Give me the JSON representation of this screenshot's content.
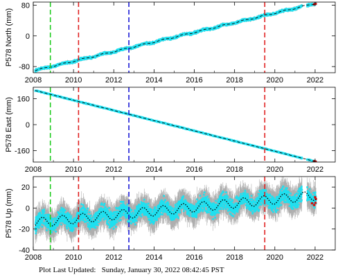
{
  "footer": {
    "label": "Plot Last Updated:",
    "timestamp": "Sunday, January 30, 2022 08:42:45 PST"
  },
  "chart_data": [
    {
      "type": "scatter",
      "ylabel": "P578 North (mm)",
      "xlim": [
        2008,
        2023
      ],
      "ylim": [
        -96,
        88
      ],
      "x_ticks": [
        "2008",
        "2010",
        "2012",
        "2014",
        "2016",
        "2018",
        "2020",
        "2022"
      ],
      "y_ticks": [
        -80,
        0,
        80
      ],
      "trend": {
        "x": [
          2008.1,
          2022.05
        ],
        "y": [
          -90,
          85
        ]
      },
      "seasonal_amplitude": 1.5,
      "noise": 2,
      "error_bar": 3
    },
    {
      "type": "scatter",
      "ylabel": "P578 East (mm)",
      "xlim": [
        2008,
        2023
      ],
      "ylim": [
        -230,
        230
      ],
      "x_ticks": [
        "2008",
        "2010",
        "2012",
        "2014",
        "2016",
        "2018",
        "2020",
        "2022"
      ],
      "y_ticks": [
        -160,
        0,
        160
      ],
      "trend": {
        "x": [
          2008.1,
          2022.05
        ],
        "y": [
          210,
          -228
        ]
      },
      "seasonal_amplitude": 0,
      "noise": 2,
      "error_bar": 3
    },
    {
      "type": "scatter",
      "ylabel": "P578 Up (mm)",
      "xlim": [
        2008,
        2023
      ],
      "ylim": [
        -40,
        30
      ],
      "x_ticks": [
        "2008",
        "2010",
        "2012",
        "2014",
        "2016",
        "2018",
        "2020",
        "2022"
      ],
      "y_ticks": [
        -40,
        -20,
        0,
        20
      ],
      "trend": {
        "x": [
          2008.1,
          2022.05
        ],
        "y": [
          -14,
          12
        ]
      },
      "seasonal_amplitude": 4.5,
      "noise": 5,
      "error_bar": 9
    }
  ],
  "event_lines": [
    {
      "x": 2008.85,
      "color": "#22cc22"
    },
    {
      "x": 2010.25,
      "color": "#e02020"
    },
    {
      "x": 2012.75,
      "color": "#1a1ad6"
    },
    {
      "x": 2019.5,
      "color": "#e02020"
    }
  ],
  "colors": {
    "points": "#1ee0f0",
    "error_bars": "#9a9a9a",
    "model": "#000000",
    "recent": "#d01010"
  }
}
